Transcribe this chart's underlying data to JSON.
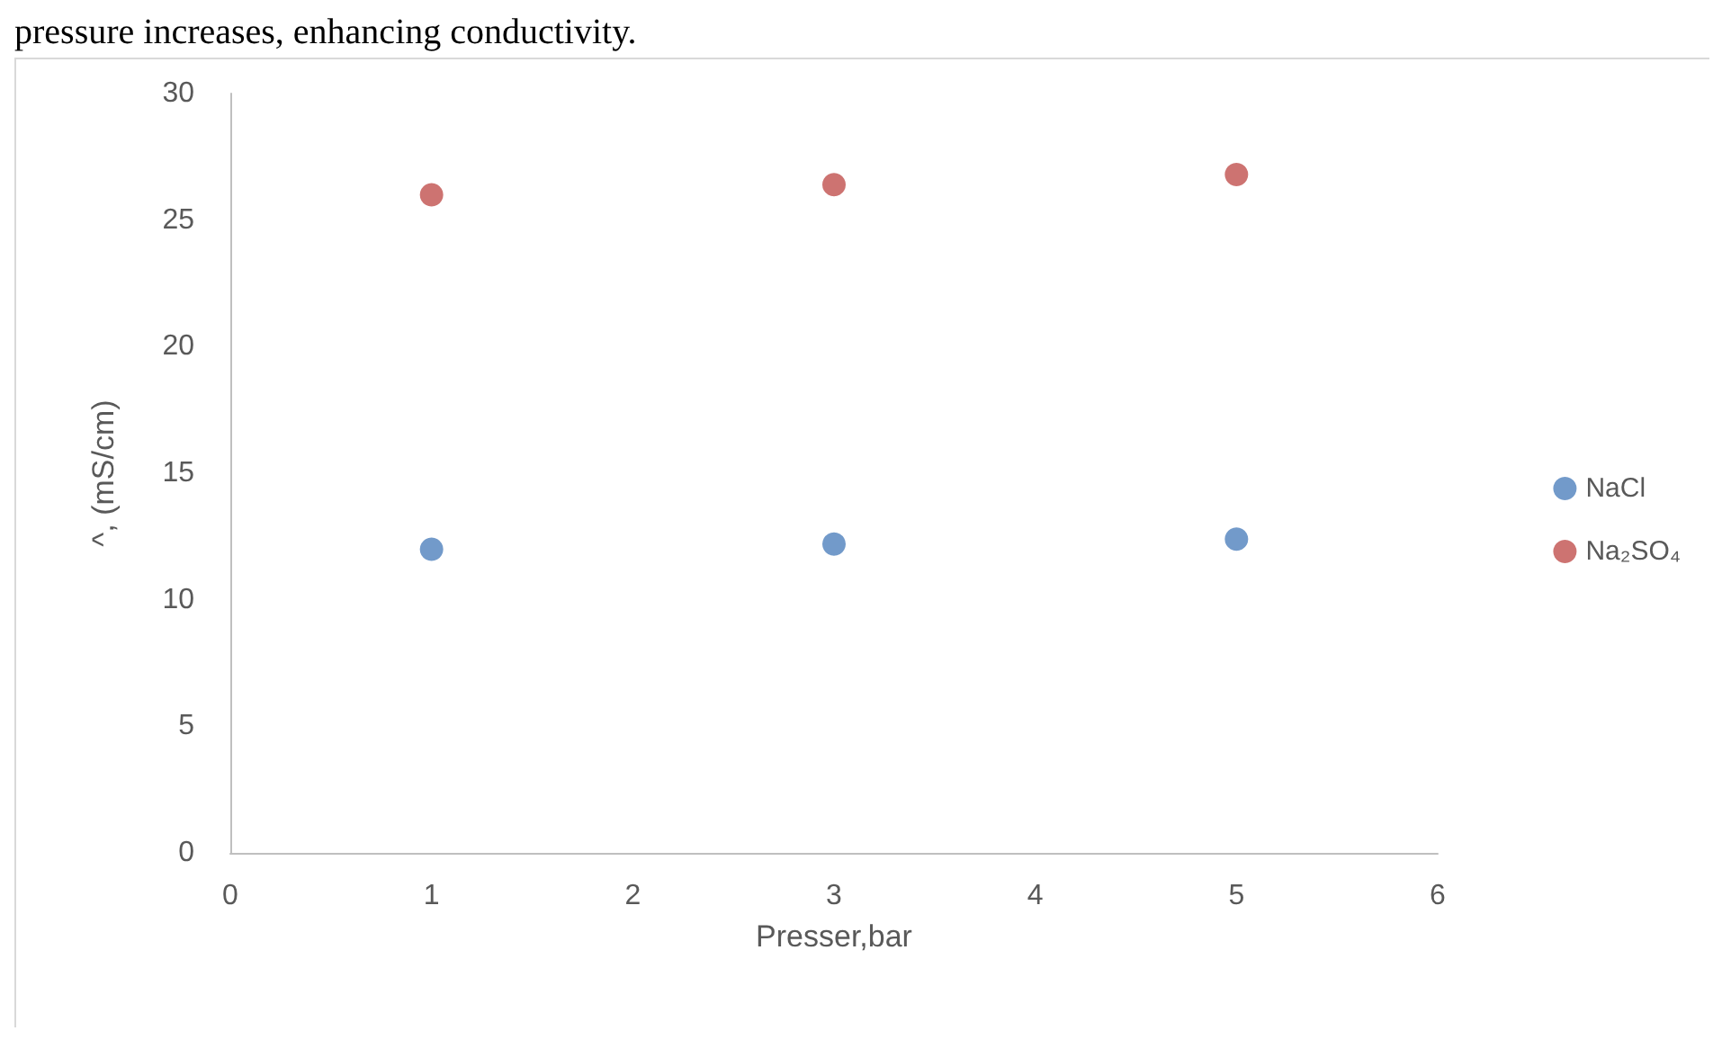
{
  "chart_data": {
    "type": "scatter",
    "xlabel": "Presser,bar",
    "ylabel": "^, (mS/cm)",
    "annotations": [
      "pressure increases, enhancing conductivity."
    ],
    "x": [
      1,
      3,
      5
    ],
    "series": [
      {
        "name": "NaCl",
        "color": "#4f81bd",
        "values": [
          12.0,
          12.2,
          12.4
        ]
      },
      {
        "name": "Na₂SO₄",
        "color": "#c0504d",
        "values": [
          26.0,
          26.4,
          26.8
        ]
      }
    ],
    "xlim": [
      0,
      6
    ],
    "xticks": [
      0,
      1,
      2,
      3,
      4,
      5,
      6
    ],
    "ylim": [
      0,
      30
    ],
    "yticks": [
      0,
      5,
      10,
      15,
      20,
      25,
      30
    ],
    "grid": false,
    "legend": "right",
    "marker": "circle"
  }
}
